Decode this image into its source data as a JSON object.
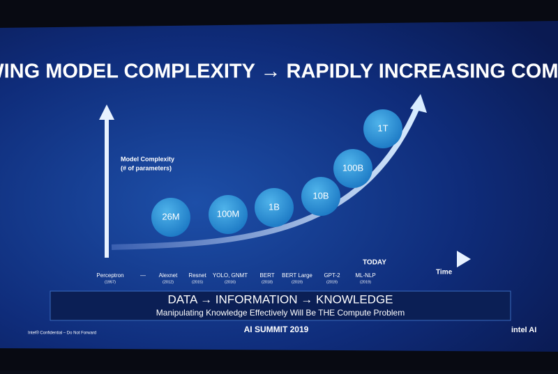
{
  "title": "GROWING MODEL COMPLEXITY → RAPIDLY INCREASING COMPUTE",
  "y_axis_label": [
    "Model Complexity",
    "(# of parameters)"
  ],
  "bubbles": [
    "26M",
    "100M",
    "1B",
    "10B",
    "100B",
    "1T"
  ],
  "timeline": [
    {
      "name": "Perceptron",
      "year": "(1957)"
    },
    {
      "name": "—"
    },
    {
      "name": "Alexnet",
      "year": "(2012)"
    },
    {
      "name": "Resnet",
      "year": "(2015)"
    },
    {
      "name": "YOLO, GNMT",
      "year": "(2016)"
    },
    {
      "name": "BERT",
      "year": "(2018)"
    },
    {
      "name": "BERT Large",
      "year": "(2019)"
    },
    {
      "name": "GPT-2",
      "year": "(2019)"
    },
    {
      "name": "ML-NLP",
      "year": "(2019)"
    }
  ],
  "today_label": "TODAY",
  "x_axis_label": "Time",
  "banner": {
    "headline": "DATA → INFORMATION → KNOWLEDGE",
    "subline": "Manipulating Knowledge Effectively Will Be THE Compute Problem"
  },
  "footer": {
    "confidential": "Intel® Confidential – Do Not Forward",
    "event": "AI SUMMIT 2019",
    "logo": "intel AI"
  }
}
